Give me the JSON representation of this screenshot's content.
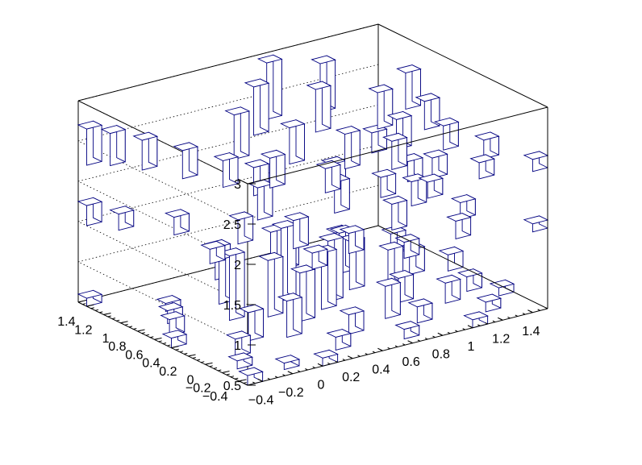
{
  "chart_data": {
    "type": "lego3d",
    "title": "",
    "xlabel": "",
    "ylabel": "",
    "zlabel": "",
    "grid": true,
    "legend": false,
    "bar_fill_color": "#ffffff",
    "bar_edge_color": "#000080",
    "axis_color": "#000000",
    "xlim": [
      -0.5,
      1.5
    ],
    "ylim": [
      -0.5,
      1.5
    ],
    "zlim": [
      0.5,
      3
    ],
    "x_ticks": [
      "−0.4",
      "−0.2",
      "0",
      "0.2",
      "0.4",
      "0.6",
      "0.8",
      "1",
      "1.2",
      "1.4"
    ],
    "x_tick_values": [
      -0.4,
      -0.2,
      0,
      0.2,
      0.4,
      0.6,
      0.8,
      1,
      1.2,
      1.4
    ],
    "y_ticks": [
      "−0.4",
      "−0.2",
      "0",
      "0.2",
      "0.4",
      "0.6",
      "0.8",
      "1",
      "1.2",
      "1.4"
    ],
    "y_tick_values": [
      -0.4,
      -0.2,
      0,
      0.2,
      0.4,
      0.6,
      0.8,
      1,
      1.2,
      1.4
    ],
    "z_ticks": [
      "0.5",
      "1",
      "1.5",
      "2",
      "2.5",
      "3"
    ],
    "z_tick_values": [
      0.5,
      1,
      1.5,
      2,
      2.5,
      3
    ],
    "bars": [
      {
        "x": -0.45,
        "y": -0.45,
        "z0": 0.5,
        "z1": 0.62
      },
      {
        "x": -0.35,
        "y": -0.15,
        "z0": 0.5,
        "z1": 0.6
      },
      {
        "x": -0.25,
        "y": 0.05,
        "z0": 0.5,
        "z1": 0.72
      },
      {
        "x": -0.15,
        "y": -0.35,
        "z0": 0.5,
        "z1": 0.58
      },
      {
        "x": -0.05,
        "y": 0.25,
        "z0": 0.5,
        "z1": 0.85
      },
      {
        "x": 0.05,
        "y": -0.45,
        "z0": 0.5,
        "z1": 0.6
      },
      {
        "x": 0.15,
        "y": 0.15,
        "z0": 0.5,
        "z1": 0.95
      },
      {
        "x": 0.25,
        "y": -0.25,
        "z0": 0.5,
        "z1": 0.66
      },
      {
        "x": 0.35,
        "y": 0.35,
        "z0": 0.5,
        "z1": 1.1
      },
      {
        "x": 0.45,
        "y": -0.05,
        "z0": 0.5,
        "z1": 0.74
      },
      {
        "x": 0.55,
        "y": 0.45,
        "z0": 0.5,
        "z1": 1.2
      },
      {
        "x": 0.65,
        "y": -0.35,
        "z0": 0.5,
        "z1": 0.62
      },
      {
        "x": 0.75,
        "y": 0.05,
        "z0": 0.5,
        "z1": 0.9
      },
      {
        "x": 0.85,
        "y": -0.15,
        "z0": 0.5,
        "z1": 0.7
      },
      {
        "x": 0.95,
        "y": 0.25,
        "z0": 0.5,
        "z1": 0.8
      },
      {
        "x": 1.05,
        "y": -0.45,
        "z0": 0.5,
        "z1": 0.6
      },
      {
        "x": 1.15,
        "y": 0.05,
        "z0": 0.5,
        "z1": 0.75
      },
      {
        "x": 1.25,
        "y": -0.25,
        "z0": 0.5,
        "z1": 0.62
      },
      {
        "x": 1.35,
        "y": 0.15,
        "z0": 0.5,
        "z1": 0.68
      },
      {
        "x": 1.45,
        "y": -0.05,
        "z0": 0.5,
        "z1": 0.6
      },
      {
        "x": -0.45,
        "y": 0.45,
        "z0": 0.5,
        "z1": 0.62
      },
      {
        "x": -0.35,
        "y": 0.65,
        "z0": 0.5,
        "z1": 0.7
      },
      {
        "x": -0.25,
        "y": 0.85,
        "z0": 0.5,
        "z1": 0.66
      },
      {
        "x": -0.15,
        "y": 1.05,
        "z0": 0.5,
        "z1": 0.6
      },
      {
        "x": -0.45,
        "y": 1.45,
        "z0": 0.5,
        "z1": 0.6
      },
      {
        "x": 0.05,
        "y": 0.65,
        "z0": 0.5,
        "z1": 1.3
      },
      {
        "x": 0.25,
        "y": 0.55,
        "z0": 0.5,
        "z1": 1.2
      },
      {
        "x": 0.45,
        "y": 0.75,
        "z0": 0.5,
        "z1": 1.4
      },
      {
        "x": 0.65,
        "y": 0.55,
        "z0": 0.5,
        "z1": 1.25
      },
      {
        "x": 0.85,
        "y": 0.65,
        "z0": 0.5,
        "z1": 1.1
      },
      {
        "x": 1.05,
        "y": 0.55,
        "z0": 0.5,
        "z1": 0.95
      },
      {
        "x": 1.25,
        "y": 0.65,
        "z0": 0.5,
        "z1": 0.8
      },
      {
        "x": 1.45,
        "y": 0.55,
        "z0": 0.5,
        "z1": 0.7
      },
      {
        "x": 0.15,
        "y": 0.95,
        "z0": 0.5,
        "z1": 1.05
      },
      {
        "x": 0.55,
        "y": 1.05,
        "z0": 0.5,
        "z1": 1.15
      },
      {
        "x": 0.95,
        "y": 0.95,
        "z0": 0.5,
        "z1": 1.0
      },
      {
        "x": 1.35,
        "y": 1.05,
        "z0": 0.5,
        "z1": 0.75
      },
      {
        "x": 0.35,
        "y": 1.35,
        "z0": 0.5,
        "z1": 0.9
      },
      {
        "x": 0.75,
        "y": 1.25,
        "z0": 0.5,
        "z1": 0.85
      },
      {
        "x": 1.15,
        "y": 1.35,
        "z0": 0.5,
        "z1": 0.7
      },
      {
        "x": -0.45,
        "y": 1.45,
        "z0": 1.5,
        "z1": 1.75
      },
      {
        "x": -0.35,
        "y": 1.25,
        "z0": 1.5,
        "z1": 1.7
      },
      {
        "x": -0.15,
        "y": 0.95,
        "z0": 1.5,
        "z1": 1.72
      },
      {
        "x": 0.05,
        "y": 0.55,
        "z0": 1.5,
        "z1": 1.8
      },
      {
        "x": 0.25,
        "y": 0.25,
        "z0": 1.5,
        "z1": 1.85
      },
      {
        "x": 0.45,
        "y": -0.05,
        "z0": 1.5,
        "z1": 1.75
      },
      {
        "x": 0.65,
        "y": -0.35,
        "z0": 1.5,
        "z1": 1.7
      },
      {
        "x": 0.85,
        "y": 0.15,
        "z0": 1.5,
        "z1": 1.82
      },
      {
        "x": 1.05,
        "y": -0.25,
        "z0": 1.5,
        "z1": 1.72
      },
      {
        "x": 1.25,
        "y": 0.05,
        "z0": 1.5,
        "z1": 1.7
      },
      {
        "x": 1.45,
        "y": -0.45,
        "z0": 1.5,
        "z1": 1.6
      },
      {
        "x": 0.35,
        "y": 0.85,
        "z0": 1.5,
        "z1": 1.9
      },
      {
        "x": 0.75,
        "y": 0.65,
        "z0": 1.5,
        "z1": 1.88
      },
      {
        "x": 1.15,
        "y": 0.45,
        "z0": 1.5,
        "z1": 1.8
      },
      {
        "x": 0.55,
        "y": 1.25,
        "z0": 1.5,
        "z1": 1.85
      },
      {
        "x": 0.95,
        "y": 1.05,
        "z0": 1.5,
        "z1": 1.8
      },
      {
        "x": 1.35,
        "y": 0.85,
        "z0": 1.5,
        "z1": 1.75
      },
      {
        "x": -0.25,
        "y": 0.35,
        "z0": 1.5,
        "z1": 1.68
      },
      {
        "x": 0.15,
        "y": -0.15,
        "z0": 1.5,
        "z1": 1.7
      },
      {
        "x": 1.45,
        "y": 1.45,
        "z0": 1.5,
        "z1": 1.75
      },
      {
        "x": -0.45,
        "y": 1.45,
        "z0": 2.25,
        "z1": 2.7
      },
      {
        "x": -0.35,
        "y": 1.35,
        "z0": 2.25,
        "z1": 2.65
      },
      {
        "x": -0.25,
        "y": 1.15,
        "z0": 2.25,
        "z1": 2.62
      },
      {
        "x": -0.15,
        "y": 0.85,
        "z0": 2.25,
        "z1": 2.6
      },
      {
        "x": -0.05,
        "y": 0.55,
        "z0": 2.25,
        "z1": 2.58
      },
      {
        "x": 0.15,
        "y": 0.35,
        "z0": 2.25,
        "z1": 2.62
      },
      {
        "x": 0.35,
        "y": 0.05,
        "z0": 2.25,
        "z1": 2.55
      },
      {
        "x": 0.55,
        "y": -0.25,
        "z0": 2.25,
        "z1": 2.5
      },
      {
        "x": 0.75,
        "y": -0.45,
        "z0": 2.25,
        "z1": 2.45
      },
      {
        "x": 0.95,
        "y": -0.15,
        "z0": 2.25,
        "z1": 2.5
      },
      {
        "x": 1.15,
        "y": -0.35,
        "z0": 2.25,
        "z1": 2.45
      },
      {
        "x": 1.35,
        "y": -0.05,
        "z0": 2.25,
        "z1": 2.48
      },
      {
        "x": 1.45,
        "y": -0.45,
        "z0": 2.25,
        "z1": 2.4
      },
      {
        "x": 0.25,
        "y": 0.95,
        "z0": 2.25,
        "z1": 2.8
      },
      {
        "x": 0.45,
        "y": 0.65,
        "z0": 2.25,
        "z1": 2.7
      },
      {
        "x": 0.65,
        "y": 0.35,
        "z0": 2.25,
        "z1": 2.68
      },
      {
        "x": 0.85,
        "y": 0.15,
        "z0": 2.25,
        "z1": 2.6
      },
      {
        "x": 1.05,
        "y": 0.45,
        "z0": 2.25,
        "z1": 2.62
      },
      {
        "x": 1.25,
        "y": 0.25,
        "z0": 2.25,
        "z1": 2.55
      },
      {
        "x": 0.55,
        "y": 1.25,
        "z0": 2.25,
        "z1": 2.85
      },
      {
        "x": 0.85,
        "y": 1.05,
        "z0": 2.25,
        "z1": 2.78
      },
      {
        "x": 1.15,
        "y": 0.85,
        "z0": 2.25,
        "z1": 2.7
      },
      {
        "x": 1.35,
        "y": 0.65,
        "z0": 2.25,
        "z1": 2.6
      },
      {
        "x": 0.75,
        "y": 1.45,
        "z0": 2.25,
        "z1": 2.95
      },
      {
        "x": 1.05,
        "y": 1.35,
        "z0": 2.25,
        "z1": 2.85
      },
      {
        "x": 1.45,
        "y": 1.05,
        "z0": 2.25,
        "z1": 2.7
      }
    ]
  }
}
